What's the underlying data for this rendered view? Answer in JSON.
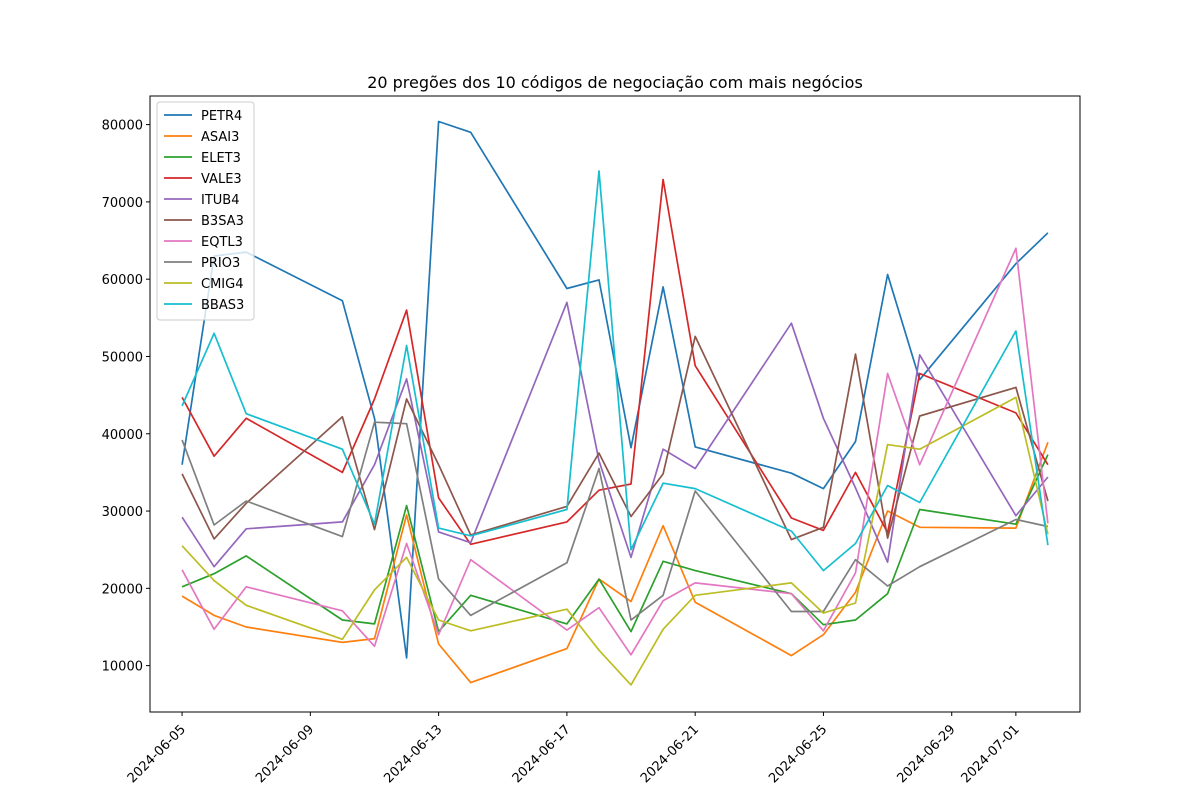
{
  "chart_data": {
    "type": "line",
    "title": "20 pregões dos 10 códigos de negociação com mais negócios",
    "xlabel": "",
    "ylabel": "",
    "x": [
      "2024-06-05",
      "2024-06-06",
      "2024-06-07",
      "2024-06-10",
      "2024-06-11",
      "2024-06-12",
      "2024-06-13",
      "2024-06-14",
      "2024-06-17",
      "2024-06-18",
      "2024-06-19",
      "2024-06-20",
      "2024-06-21",
      "2024-06-24",
      "2024-06-25",
      "2024-06-26",
      "2024-06-27",
      "2024-06-28",
      "2024-07-01",
      "2024-07-02"
    ],
    "xticks": [
      "2024-06-05",
      "2024-06-09",
      "2024-06-13",
      "2024-06-17",
      "2024-06-21",
      "2024-06-25",
      "2024-06-29",
      "2024-07-01"
    ],
    "yticks": [
      10000,
      20000,
      30000,
      40000,
      50000,
      60000,
      70000,
      80000
    ],
    "ylim": [
      4000,
      83700
    ],
    "xlim": [
      "2024-06-04",
      "2024-07-03"
    ],
    "legend_position": "upper-left",
    "grid": false,
    "series": [
      {
        "name": "PETR4",
        "color": "#1f77b4",
        "values": [
          36000,
          63000,
          63500,
          57200,
          42000,
          11000,
          80400,
          79000,
          58800,
          59900,
          38200,
          59000,
          38300,
          34900,
          32900,
          39000,
          60600,
          47000,
          62000,
          66000
        ]
      },
      {
        "name": "ASAI3",
        "color": "#ff7f0e",
        "values": [
          19000,
          16500,
          15000,
          13000,
          13500,
          29500,
          12800,
          7800,
          12200,
          21200,
          18300,
          28100,
          18200,
          11300,
          14000,
          19500,
          30000,
          27900,
          27800,
          38900
        ]
      },
      {
        "name": "ELET3",
        "color": "#2ca02c",
        "values": [
          20200,
          21900,
          24200,
          15900,
          15400,
          30700,
          14400,
          19100,
          15400,
          21200,
          14400,
          23500,
          22300,
          19300,
          15300,
          15900,
          19300,
          30200,
          28300,
          37300
        ]
      },
      {
        "name": "VALE3",
        "color": "#d62728",
        "values": [
          44700,
          37100,
          42000,
          35000,
          44500,
          56000,
          31700,
          25700,
          28600,
          32700,
          33500,
          72900,
          48800,
          29100,
          27500,
          35000,
          27200,
          47800,
          42700,
          36000
        ]
      },
      {
        "name": "ITUB4",
        "color": "#9467bd",
        "values": [
          29200,
          22800,
          27700,
          28600,
          36000,
          47100,
          27300,
          25900,
          57000,
          36500,
          24000,
          38000,
          35500,
          54300,
          42000,
          33000,
          23400,
          50200,
          29400,
          34400
        ]
      },
      {
        "name": "B3SA3",
        "color": "#8c564b",
        "values": [
          34800,
          26400,
          31000,
          42200,
          27600,
          44500,
          36000,
          26900,
          30600,
          37500,
          29300,
          34800,
          52600,
          26300,
          27900,
          50300,
          26500,
          42300,
          46000,
          31300
        ]
      },
      {
        "name": "EQTL3",
        "color": "#e377c2",
        "values": [
          22400,
          14700,
          20200,
          17100,
          12500,
          25800,
          14000,
          23700,
          14600,
          17500,
          11400,
          18400,
          20700,
          19300,
          14500,
          22000,
          47800,
          36000,
          64000,
          28400
        ]
      },
      {
        "name": "PRIO3",
        "color": "#7f7f7f",
        "values": [
          39200,
          28200,
          31300,
          26700,
          41500,
          41300,
          21200,
          16500,
          23300,
          35500,
          15900,
          19100,
          32600,
          17000,
          17000,
          23700,
          20300,
          22800,
          28900,
          28000
        ]
      },
      {
        "name": "CMIG4",
        "color": "#bcbd22",
        "values": [
          25500,
          21000,
          17800,
          13400,
          19800,
          24000,
          15900,
          14500,
          17300,
          12000,
          7500,
          14700,
          19100,
          20700,
          16800,
          18100,
          38600,
          38000,
          44700,
          27000
        ]
      },
      {
        "name": "BBAS3",
        "color": "#17becf",
        "values": [
          43600,
          53000,
          42600,
          38000,
          28300,
          51400,
          27800,
          26800,
          30200,
          74000,
          25000,
          33600,
          32900,
          27400,
          22300,
          25800,
          33300,
          31100,
          53300,
          25600
        ]
      }
    ]
  }
}
